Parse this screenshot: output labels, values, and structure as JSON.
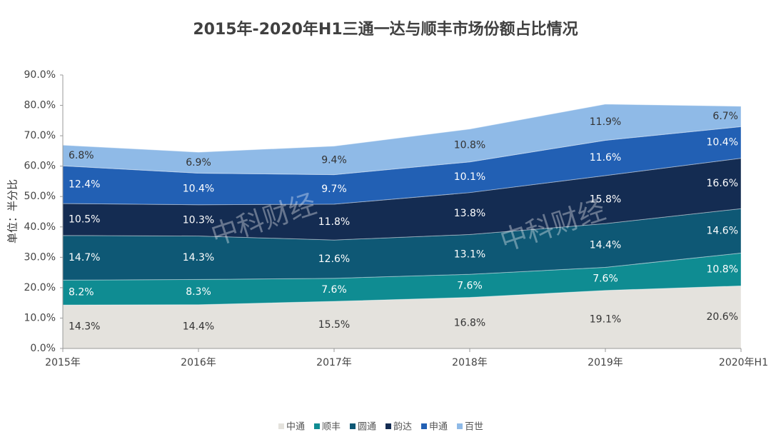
{
  "chart_data": {
    "type": "stacked-area",
    "title": "2015年-2020年H1三通一达与顺丰市场份额占比情况",
    "y_label": "单位：半分比",
    "watermark": [
      "中科财经",
      "中科财经"
    ],
    "categories": [
      "2015年",
      "2016年",
      "2017年",
      "2018年",
      "2019年",
      "2020年H1"
    ],
    "ylim": [
      0,
      90
    ],
    "yticks": [
      {
        "value": 0,
        "label": "0.0%"
      },
      {
        "value": 10,
        "label": "10.0%"
      },
      {
        "value": 20,
        "label": "20.0%"
      },
      {
        "value": 30,
        "label": "30.0%"
      },
      {
        "value": 40,
        "label": "40.0%"
      },
      {
        "value": 50,
        "label": "50.0%"
      },
      {
        "value": 60,
        "label": "60.0%"
      },
      {
        "value": 70,
        "label": "70.0%"
      },
      {
        "value": 80,
        "label": "80.0%"
      },
      {
        "value": 90,
        "label": "90.0%"
      }
    ],
    "legend": "bottom",
    "series": [
      {
        "name": "中通",
        "color": "#e4e2dd",
        "label_color": "#333333",
        "values": [
          14.3,
          14.4,
          15.5,
          16.8,
          19.1,
          20.6
        ],
        "value_labels": [
          "14.3%",
          "14.4%",
          "15.5%",
          "16.8%",
          "19.1%",
          "20.6%"
        ]
      },
      {
        "name": "顺丰",
        "color": "#0f8c92",
        "label_color": "#ffffff",
        "values": [
          8.2,
          8.3,
          7.6,
          7.6,
          7.6,
          10.8
        ],
        "value_labels": [
          "8.2%",
          "8.3%",
          "7.6%",
          "7.6%",
          "7.6%",
          "10.8%"
        ]
      },
      {
        "name": "圆通",
        "color": "#0e5875",
        "label_color": "#ffffff",
        "values": [
          14.7,
          14.3,
          12.6,
          13.1,
          14.4,
          14.6
        ],
        "value_labels": [
          "14.7%",
          "14.3%",
          "12.6%",
          "13.1%",
          "14.4%",
          "14.6%"
        ]
      },
      {
        "name": "韵达",
        "color": "#142c52",
        "label_color": "#ffffff",
        "values": [
          10.5,
          10.3,
          11.8,
          13.8,
          15.8,
          16.6
        ],
        "value_labels": [
          "10.5%",
          "10.3%",
          "11.8%",
          "13.8%",
          "15.8%",
          "16.6%"
        ]
      },
      {
        "name": "申通",
        "color": "#2260b4",
        "label_color": "#ffffff",
        "values": [
          12.4,
          10.4,
          9.7,
          10.1,
          11.6,
          10.4
        ],
        "value_labels": [
          "12.4%",
          "10.4%",
          "9.7%",
          "10.1%",
          "11.6%",
          "10.4%"
        ]
      },
      {
        "name": "百世",
        "color": "#8fbae7",
        "label_color": "#333333",
        "values": [
          6.8,
          6.9,
          9.4,
          10.8,
          11.9,
          6.7
        ],
        "value_labels": [
          "6.8%",
          "6.9%",
          "9.4%",
          "10.8%",
          "11.9%",
          "6.7%"
        ]
      }
    ]
  }
}
